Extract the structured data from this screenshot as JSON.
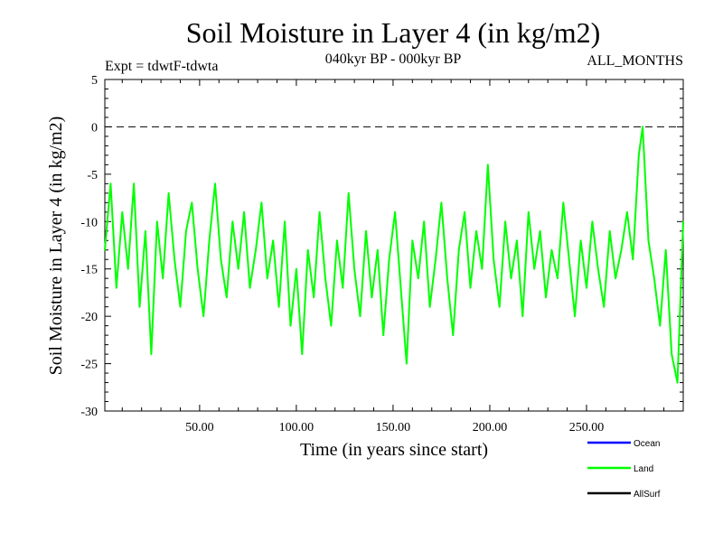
{
  "chart_data": {
    "type": "line",
    "title": "Soil Moisture in Layer 4 (in kg/m2)",
    "subtitle_left": "Expt = tdwtF-tdwta",
    "subtitle_center": "040kyr BP - 000kyr BP",
    "subtitle_right": "ALL_MONTHS",
    "xlabel": "Time (in years since start)",
    "ylabel": "Soil Moisture in Layer 4 (in kg/m2)",
    "xlim": [
      1,
      300
    ],
    "ylim": [
      -30,
      5
    ],
    "x_tick_values": [
      50,
      100,
      150,
      200,
      250
    ],
    "x_tick_labels": [
      "50.00",
      "100.00",
      "150.00",
      "200.00",
      "250.00"
    ],
    "y_tick_values": [
      5,
      0,
      -5,
      -10,
      -15,
      -20,
      -25,
      -30
    ],
    "y_tick_labels": [
      "5",
      "0",
      "-5",
      "-10",
      "-15",
      "-20",
      "-25",
      "-30"
    ],
    "reference_line": {
      "y": 0,
      "style": "dashed"
    },
    "legend": [
      {
        "name": "Ocean",
        "color": "#0000ff"
      },
      {
        "name": "Land",
        "color": "#00ff00"
      },
      {
        "name": "AllSurf",
        "color": "#000000"
      }
    ],
    "series": [
      {
        "name": "Land",
        "color": "#00ff00",
        "x": [
          1,
          4,
          7,
          10,
          13,
          16,
          19,
          22,
          25,
          28,
          31,
          34,
          37,
          40,
          43,
          46,
          49,
          52,
          55,
          58,
          61,
          64,
          67,
          70,
          73,
          76,
          79,
          82,
          85,
          88,
          91,
          94,
          97,
          100,
          103,
          106,
          109,
          112,
          115,
          118,
          121,
          124,
          127,
          130,
          133,
          136,
          139,
          142,
          145,
          148,
          151,
          154,
          157,
          160,
          163,
          166,
          169,
          172,
          175,
          178,
          181,
          184,
          187,
          190,
          193,
          196,
          199,
          202,
          205,
          208,
          211,
          214,
          217,
          220,
          223,
          226,
          229,
          232,
          235,
          238,
          241,
          244,
          247,
          250,
          253,
          256,
          259,
          262,
          265,
          268,
          271,
          274,
          277,
          279,
          282,
          285,
          288,
          291,
          294,
          297,
          300
        ],
        "values": [
          -13,
          -6,
          -17,
          -9,
          -15,
          -6,
          -19,
          -11,
          -24,
          -10,
          -16,
          -7,
          -14,
          -19,
          -11,
          -8,
          -15,
          -20,
          -12,
          -6,
          -14,
          -18,
          -10,
          -15,
          -9,
          -17,
          -13,
          -8,
          -16,
          -12,
          -19,
          -10,
          -21,
          -15,
          -24,
          -13,
          -18,
          -9,
          -16,
          -21,
          -12,
          -17,
          -7,
          -15,
          -20,
          -11,
          -18,
          -13,
          -22,
          -14,
          -9,
          -17,
          -25,
          -12,
          -16,
          -10,
          -19,
          -14,
          -8,
          -16,
          -22,
          -13,
          -9,
          -17,
          -11,
          -15,
          -4,
          -14,
          -19,
          -10,
          -16,
          -12,
          -20,
          -9,
          -15,
          -11,
          -18,
          -13,
          -16,
          -8,
          -14,
          -20,
          -12,
          -17,
          -10,
          -15,
          -19,
          -11,
          -16,
          -13,
          -9,
          -14,
          -3,
          0,
          -12,
          -16,
          -21,
          -13,
          -24,
          -27,
          -10
        ]
      }
    ]
  }
}
